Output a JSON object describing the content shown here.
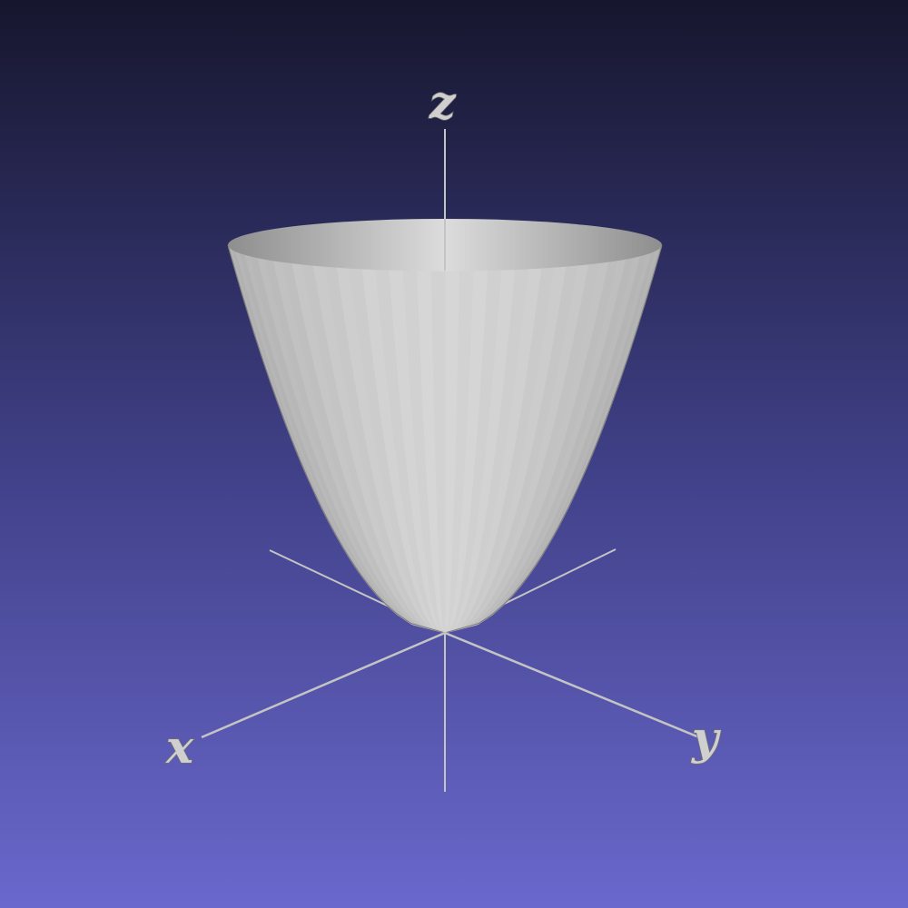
{
  "scene": {
    "background_top": "#16162e",
    "background_bottom": "#6a68cc",
    "surface_color": "#c8c8c8",
    "axis_color": "#c4c4c4",
    "axes": {
      "x_label": "x",
      "y_label": "y",
      "z_label": "z"
    }
  }
}
